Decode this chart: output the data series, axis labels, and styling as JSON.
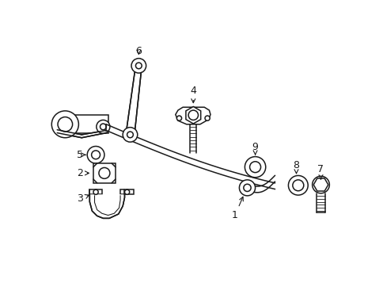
{
  "bg_color": "#ffffff",
  "line_color": "#1a1a1a",
  "figsize": [
    4.85,
    3.57
  ],
  "dpi": 100,
  "lw": 1.1
}
